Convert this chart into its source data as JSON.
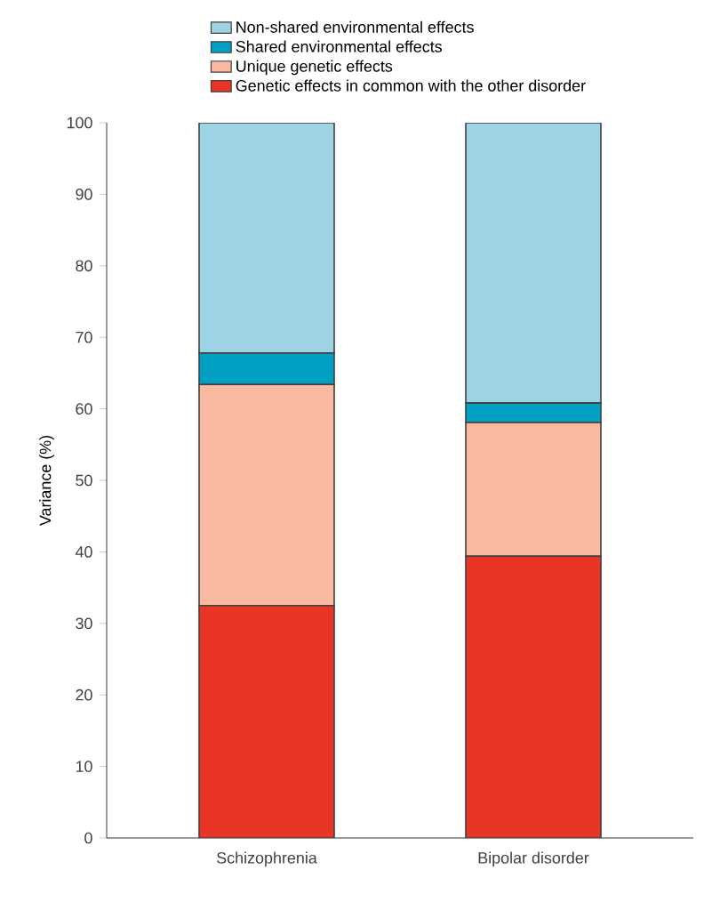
{
  "chart_data": {
    "type": "bar",
    "stacked": true,
    "ylabel": "Variance (%)",
    "categories": [
      "Schizophrenia",
      "Bipolar disorder"
    ],
    "series": [
      {
        "name": "Genetic effects in common with the other disorder",
        "color": "#e83526",
        "values": [
          32.5,
          39.4
        ]
      },
      {
        "name": "Unique genetic effects",
        "color": "#f9b8a0",
        "values": [
          30.9,
          18.7
        ]
      },
      {
        "name": "Shared environmental effects",
        "color": "#00a0c4",
        "values": [
          4.4,
          2.7
        ]
      },
      {
        "name": "Non-shared environmental effects",
        "color": "#9dd3e3",
        "values": [
          32.2,
          39.2
        ]
      }
    ],
    "ylim": [
      0,
      100
    ],
    "yticks": [
      0,
      10,
      20,
      30,
      40,
      50,
      60,
      70,
      80,
      90,
      100
    ],
    "legend": "top",
    "grid": false
  }
}
